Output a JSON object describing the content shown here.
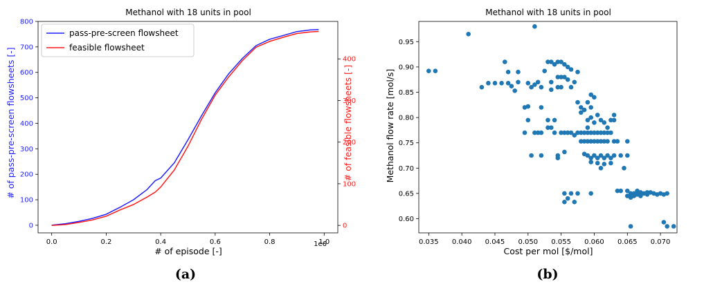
{
  "chart_data": [
    {
      "type": "line",
      "title": "Methanol with 18 units in pool",
      "xlabel": "# of episode [-]",
      "ylabel": "# of pass-pre-screen flowsheets [-]",
      "y2label": "# of feasible flowsheets [-]",
      "x_scale_label": "1e6",
      "xlim": [
        -0.05,
        1.05
      ],
      "ylim": [
        -30,
        800
      ],
      "y2lim": [
        -18,
        490
      ],
      "xticks": [
        "0.0",
        "0.2",
        "0.4",
        "0.6",
        "0.8",
        "1.0"
      ],
      "xtick_values": [
        0.0,
        0.2,
        0.4,
        0.6,
        0.8,
        1.0
      ],
      "yticks": [
        "0",
        "100",
        "200",
        "300",
        "400",
        "500",
        "600",
        "700",
        "800"
      ],
      "ytick_values": [
        0,
        100,
        200,
        300,
        400,
        500,
        600,
        700,
        800
      ],
      "y2ticks": [
        "0",
        "100",
        "200",
        "300",
        "400"
      ],
      "y2tick_values": [
        0,
        100,
        200,
        300,
        400
      ],
      "legend_position": "top-left",
      "colors": {
        "primary": "#1f1fff",
        "secondary": "#ff1a1a"
      },
      "series": [
        {
          "name": "pass-pre-screen flowsheet",
          "axis": "left",
          "color": "#1f1fff",
          "x": [
            0.0,
            0.05,
            0.1,
            0.15,
            0.2,
            0.25,
            0.3,
            0.35,
            0.38,
            0.4,
            0.45,
            0.5,
            0.55,
            0.6,
            0.65,
            0.7,
            0.75,
            0.8,
            0.85,
            0.9,
            0.95,
            0.98
          ],
          "y": [
            0,
            6,
            15,
            27,
            43,
            70,
            100,
            140,
            175,
            185,
            245,
            335,
            430,
            520,
            595,
            655,
            705,
            730,
            745,
            760,
            767,
            768
          ]
        },
        {
          "name": "feasible flowsheet",
          "axis": "right",
          "color": "#ff1a1a",
          "x": [
            0.0,
            0.05,
            0.1,
            0.15,
            0.2,
            0.25,
            0.3,
            0.35,
            0.38,
            0.4,
            0.45,
            0.5,
            0.55,
            0.6,
            0.65,
            0.7,
            0.75,
            0.8,
            0.85,
            0.9,
            0.95,
            0.98
          ],
          "y": [
            0,
            2,
            7,
            13,
            22,
            37,
            50,
            68,
            80,
            92,
            133,
            190,
            255,
            313,
            357,
            396,
            428,
            442,
            452,
            461,
            465,
            466
          ]
        }
      ]
    },
    {
      "type": "scatter",
      "title": "Methanol with 18 units in pool",
      "xlabel": "Cost per mol [$/mol]",
      "ylabel": "Methanol flow rate [mol/s]",
      "xlim": [
        0.0335,
        0.0725
      ],
      "ylim": [
        0.572,
        0.99
      ],
      "xticks": [
        "0.035",
        "0.040",
        "0.045",
        "0.050",
        "0.055",
        "0.060",
        "0.065",
        "0.070"
      ],
      "xtick_values": [
        0.035,
        0.04,
        0.045,
        0.05,
        0.055,
        0.06,
        0.065,
        0.07
      ],
      "yticks": [
        "0.60",
        "0.65",
        "0.70",
        "0.75",
        "0.80",
        "0.85",
        "0.90",
        "0.95"
      ],
      "ytick_values": [
        0.6,
        0.65,
        0.7,
        0.75,
        0.8,
        0.85,
        0.9,
        0.95
      ],
      "color": "#1f77b4",
      "points": [
        [
          0.035,
          0.892
        ],
        [
          0.036,
          0.892
        ],
        [
          0.041,
          0.965
        ],
        [
          0.051,
          0.98
        ],
        [
          0.043,
          0.86
        ],
        [
          0.044,
          0.868
        ],
        [
          0.045,
          0.868
        ],
        [
          0.046,
          0.868
        ],
        [
          0.047,
          0.868
        ],
        [
          0.0465,
          0.91
        ],
        [
          0.047,
          0.89
        ],
        [
          0.0475,
          0.862
        ],
        [
          0.048,
          0.853
        ],
        [
          0.0485,
          0.87
        ],
        [
          0.0485,
          0.89
        ],
        [
          0.0495,
          0.82
        ],
        [
          0.05,
          0.822
        ],
        [
          0.05,
          0.868
        ],
        [
          0.0505,
          0.86
        ],
        [
          0.051,
          0.865
        ],
        [
          0.0515,
          0.87
        ],
        [
          0.052,
          0.86
        ],
        [
          0.052,
          0.82
        ],
        [
          0.0525,
          0.892
        ],
        [
          0.053,
          0.91
        ],
        [
          0.0535,
          0.91
        ],
        [
          0.054,
          0.905
        ],
        [
          0.0545,
          0.91
        ],
        [
          0.055,
          0.91
        ],
        [
          0.0555,
          0.905
        ],
        [
          0.056,
          0.9
        ],
        [
          0.0565,
          0.895
        ],
        [
          0.0535,
          0.87
        ],
        [
          0.0545,
          0.88
        ],
        [
          0.055,
          0.88
        ],
        [
          0.0555,
          0.88
        ],
        [
          0.056,
          0.875
        ],
        [
          0.0565,
          0.86
        ],
        [
          0.057,
          0.87
        ],
        [
          0.0575,
          0.89
        ],
        [
          0.055,
          0.86
        ],
        [
          0.0545,
          0.86
        ],
        [
          0.0535,
          0.855
        ],
        [
          0.0495,
          0.77
        ],
        [
          0.05,
          0.795
        ],
        [
          0.0505,
          0.725
        ],
        [
          0.051,
          0.77
        ],
        [
          0.0515,
          0.77
        ],
        [
          0.052,
          0.77
        ],
        [
          0.052,
          0.725
        ],
        [
          0.053,
          0.78
        ],
        [
          0.053,
          0.795
        ],
        [
          0.0535,
          0.78
        ],
        [
          0.054,
          0.795
        ],
        [
          0.054,
          0.77
        ],
        [
          0.0545,
          0.725
        ],
        [
          0.0545,
          0.72
        ],
        [
          0.055,
          0.77
        ],
        [
          0.0555,
          0.77
        ],
        [
          0.0555,
          0.732
        ],
        [
          0.056,
          0.77
        ],
        [
          0.0565,
          0.77
        ],
        [
          0.057,
          0.765
        ],
        [
          0.0575,
          0.83
        ],
        [
          0.058,
          0.82
        ],
        [
          0.058,
          0.81
        ],
        [
          0.0585,
          0.815
        ],
        [
          0.059,
          0.83
        ],
        [
          0.059,
          0.795
        ],
        [
          0.059,
          0.78
        ],
        [
          0.0595,
          0.845
        ],
        [
          0.0595,
          0.82
        ],
        [
          0.0595,
          0.8
        ],
        [
          0.06,
          0.84
        ],
        [
          0.06,
          0.79
        ],
        [
          0.0605,
          0.805
        ],
        [
          0.061,
          0.795
        ],
        [
          0.0615,
          0.79
        ],
        [
          0.062,
          0.78
        ],
        [
          0.0625,
          0.795
        ],
        [
          0.063,
          0.805
        ],
        [
          0.063,
          0.795
        ],
        [
          0.0575,
          0.77
        ],
        [
          0.058,
          0.77
        ],
        [
          0.0585,
          0.77
        ],
        [
          0.059,
          0.77
        ],
        [
          0.0595,
          0.77
        ],
        [
          0.06,
          0.77
        ],
        [
          0.0605,
          0.77
        ],
        [
          0.061,
          0.77
        ],
        [
          0.0615,
          0.77
        ],
        [
          0.062,
          0.77
        ],
        [
          0.0625,
          0.77
        ],
        [
          0.058,
          0.753
        ],
        [
          0.0585,
          0.753
        ],
        [
          0.059,
          0.753
        ],
        [
          0.0595,
          0.753
        ],
        [
          0.06,
          0.753
        ],
        [
          0.0605,
          0.753
        ],
        [
          0.061,
          0.753
        ],
        [
          0.0615,
          0.753
        ],
        [
          0.062,
          0.753
        ],
        [
          0.063,
          0.753
        ],
        [
          0.0635,
          0.753
        ],
        [
          0.065,
          0.753
        ],
        [
          0.0585,
          0.728
        ],
        [
          0.059,
          0.725
        ],
        [
          0.0595,
          0.72
        ],
        [
          0.06,
          0.725
        ],
        [
          0.0605,
          0.72
        ],
        [
          0.061,
          0.725
        ],
        [
          0.0615,
          0.72
        ],
        [
          0.062,
          0.725
        ],
        [
          0.0625,
          0.72
        ],
        [
          0.063,
          0.725
        ],
        [
          0.0595,
          0.712
        ],
        [
          0.0605,
          0.71
        ],
        [
          0.0615,
          0.708
        ],
        [
          0.061,
          0.7
        ],
        [
          0.0625,
          0.71
        ],
        [
          0.064,
          0.725
        ],
        [
          0.065,
          0.725
        ],
        [
          0.0645,
          0.7
        ],
        [
          0.0555,
          0.65
        ],
        [
          0.0555,
          0.633
        ],
        [
          0.056,
          0.64
        ],
        [
          0.0575,
          0.65
        ],
        [
          0.0565,
          0.65
        ],
        [
          0.057,
          0.633
        ],
        [
          0.0595,
          0.65
        ],
        [
          0.0635,
          0.655
        ],
        [
          0.064,
          0.655
        ],
        [
          0.065,
          0.655
        ],
        [
          0.0655,
          0.65
        ],
        [
          0.066,
          0.65
        ],
        [
          0.0665,
          0.648
        ],
        [
          0.067,
          0.652
        ],
        [
          0.0675,
          0.65
        ],
        [
          0.068,
          0.648
        ],
        [
          0.0685,
          0.652
        ],
        [
          0.069,
          0.65
        ],
        [
          0.0695,
          0.648
        ],
        [
          0.07,
          0.65
        ],
        [
          0.0705,
          0.648
        ],
        [
          0.071,
          0.65
        ],
        [
          0.066,
          0.645
        ],
        [
          0.0665,
          0.655
        ],
        [
          0.067,
          0.645
        ],
        [
          0.068,
          0.652
        ],
        [
          0.0655,
          0.642
        ],
        [
          0.065,
          0.645
        ],
        [
          0.0655,
          0.585
        ],
        [
          0.0705,
          0.593
        ],
        [
          0.071,
          0.585
        ],
        [
          0.072,
          0.585
        ]
      ]
    }
  ],
  "panel_labels": {
    "a": "(a)",
    "b": "(b)"
  }
}
